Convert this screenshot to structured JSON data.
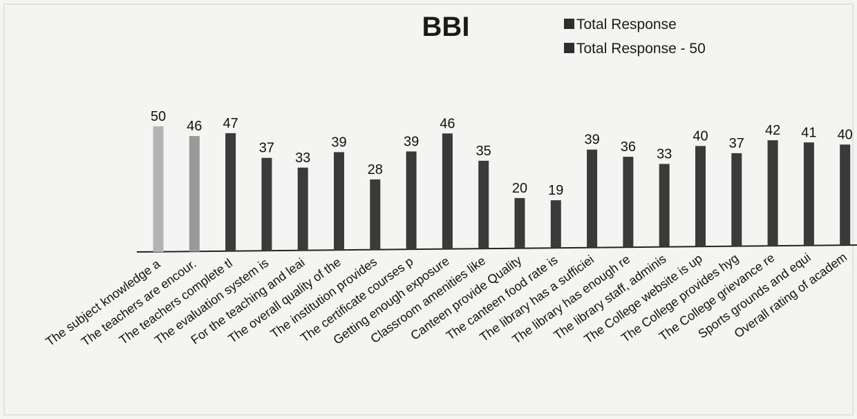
{
  "chart_data": {
    "type": "bar",
    "title": "BBI",
    "xlabel": "",
    "ylabel": "",
    "ylim": [
      0,
      55
    ],
    "grid": false,
    "legend": {
      "placement": "top-right",
      "entries": [
        "Total Response",
        "Total Response - 50"
      ]
    },
    "categories": [
      "The subject knowledge a",
      "The teachers are encour.",
      "The teachers complete tl",
      "The evaluation system is",
      "For the teaching and leai",
      "The overall quality of the",
      "The institution provides",
      "The certificate courses p",
      "Getting enough exposure",
      "Classroom amenities like",
      "Canteen provide Quality",
      "The canteen food rate is",
      "The library has a sufficiei",
      "The library has enough re",
      "The library staff, adminis",
      "The College website is up",
      "The College provides hyg",
      "The College grievance re",
      "Sports grounds and equi",
      "Overall rating of academ"
    ],
    "series": [
      {
        "name": "Total Response - 50",
        "values": [
          50,
          46,
          47,
          37,
          33,
          39,
          28,
          39,
          46,
          35,
          20,
          19,
          39,
          36,
          33,
          40,
          37,
          42,
          41,
          40
        ]
      }
    ],
    "colors": {
      "bar_dark": "#3a3a3a",
      "bar_light": "#9a9a9a",
      "bar_first": "#b4b4b4",
      "legend_swatch": "#2e2e2e"
    }
  }
}
